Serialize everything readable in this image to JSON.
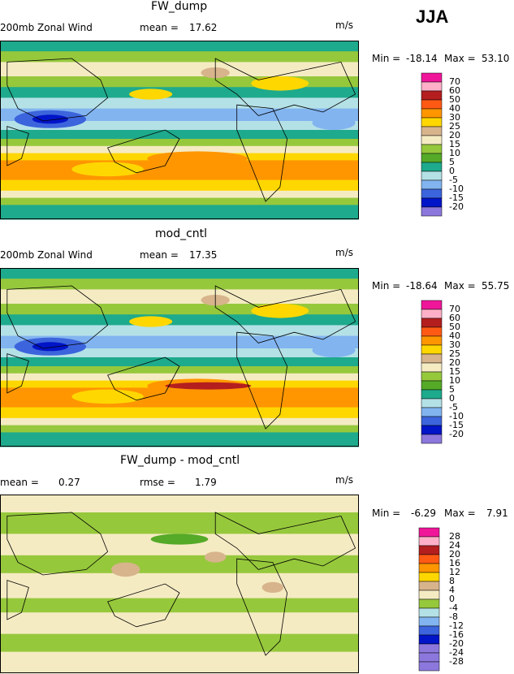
{
  "season": "JJA",
  "chart_data": [
    {
      "type": "heatmap",
      "title": "FW_dump",
      "variable": "200mb Zonal Wind",
      "stat1_label": "mean =",
      "stat1_value": "17.62",
      "units": "m/s",
      "min_label": "Min =",
      "min_value": "-18.14",
      "max_label": "Max =",
      "max_value": "53.10",
      "levels": [
        "70",
        "60",
        "50",
        "40",
        "30",
        "25",
        "20",
        "15",
        "10",
        "5",
        "0",
        "-5",
        "-10",
        "-15",
        "-20"
      ],
      "colors": [
        "#f0169a",
        "#ffb0c8",
        "#b41e1e",
        "#ff5a14",
        "#ff9600",
        "#ffd700",
        "#d7b48c",
        "#f5ebc3",
        "#96c83c",
        "#55aa28",
        "#1eaa8c",
        "#b4e1e6",
        "#82b4f0",
        "#3c64dc",
        "#0014c8",
        "#8c78dc"
      ]
    },
    {
      "type": "heatmap",
      "title": "mod_cntl",
      "variable": "200mb Zonal Wind",
      "stat1_label": "mean =",
      "stat1_value": "17.35",
      "units": "m/s",
      "min_label": "Min =",
      "min_value": "-18.64",
      "max_label": "Max =",
      "max_value": "55.75",
      "levels": [
        "70",
        "60",
        "50",
        "40",
        "30",
        "25",
        "20",
        "15",
        "10",
        "5",
        "0",
        "-5",
        "-10",
        "-15",
        "-20"
      ],
      "colors": [
        "#f0169a",
        "#ffb0c8",
        "#b41e1e",
        "#ff5a14",
        "#ff9600",
        "#ffd700",
        "#d7b48c",
        "#f5ebc3",
        "#96c83c",
        "#55aa28",
        "#1eaa8c",
        "#b4e1e6",
        "#82b4f0",
        "#3c64dc",
        "#0014c8",
        "#8c78dc"
      ]
    },
    {
      "type": "heatmap",
      "title": "FW_dump - mod_cntl",
      "stat1_label": "mean =",
      "stat1_value": "0.27",
      "stat2_label": "rmse =",
      "stat2_value": "1.79",
      "units": "m/s",
      "min_label": "Min =",
      "min_value": "-6.29",
      "max_label": "Max =",
      "max_value": "7.91",
      "levels": [
        "28",
        "24",
        "20",
        "16",
        "12",
        "8",
        "4",
        "0",
        "-4",
        "-8",
        "-12",
        "-16",
        "-20",
        "-24",
        "-28"
      ],
      "colors": [
        "#f0169a",
        "#ffb0c8",
        "#b41e1e",
        "#ff5a14",
        "#ff9600",
        "#ffd700",
        "#d7b48c",
        "#f5ebc3",
        "#96c83c",
        "#b4e1e6",
        "#82b4f0",
        "#3c64dc",
        "#0014c8",
        "#8c78dc",
        "#8c78dc",
        "#8c78dc"
      ]
    }
  ]
}
